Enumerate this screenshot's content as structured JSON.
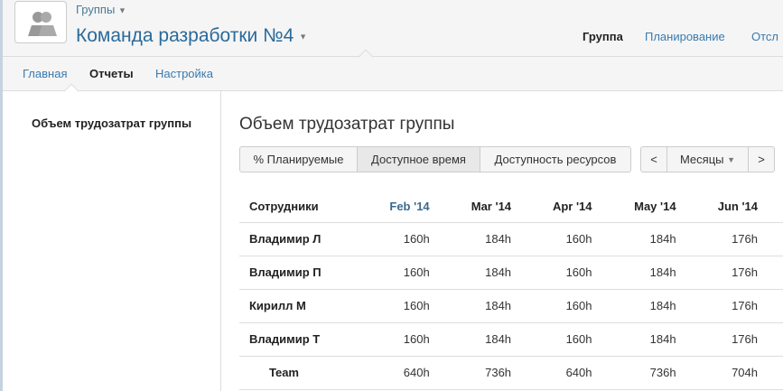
{
  "header": {
    "breadcrumb": "Группы",
    "title": "Команда разработки №4",
    "nav": [
      {
        "label": "Группа",
        "active": true
      },
      {
        "label": "Планирование"
      },
      {
        "label": "Отсл"
      }
    ]
  },
  "subnav": [
    {
      "label": "Главная"
    },
    {
      "label": "Отчеты",
      "active": true
    },
    {
      "label": "Настройка"
    }
  ],
  "sidebar": {
    "items": [
      {
        "label": "Объем трудозатрат группы",
        "active": true
      }
    ]
  },
  "main": {
    "title": "Объем трудозатрат группы",
    "view_buttons": [
      "% Планируемые",
      "Доступное время",
      "Доступность ресурсов"
    ],
    "active_view": "Доступное время",
    "period": {
      "prev": "<",
      "label": "Месяцы",
      "next": ">"
    },
    "table": {
      "headers": [
        "Сотрудники",
        "Feb '14",
        "Mar '14",
        "Apr '14",
        "May '14",
        "Jun '14"
      ],
      "rows": [
        [
          "Владимир Л",
          "160h",
          "184h",
          "160h",
          "184h",
          "176h"
        ],
        [
          "Владимир П",
          "160h",
          "184h",
          "160h",
          "184h",
          "176h"
        ],
        [
          "Кирилл М",
          "160h",
          "184h",
          "160h",
          "184h",
          "176h"
        ],
        [
          "Владимир Т",
          "160h",
          "184h",
          "160h",
          "184h",
          "176h"
        ],
        [
          "Team",
          "640h",
          "736h",
          "640h",
          "736h",
          "704h"
        ]
      ]
    }
  }
}
